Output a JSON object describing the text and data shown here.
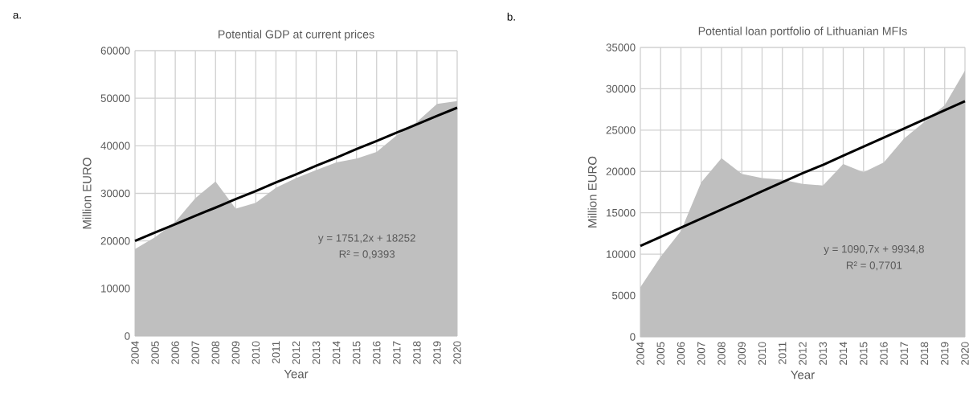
{
  "chart_data": [
    {
      "type": "area",
      "title": "Potential GDP at current prices",
      "xlabel": "Year",
      "ylabel": "Million EURO",
      "categories": [
        "2004",
        "2005",
        "2006",
        "2007",
        "2008",
        "2009",
        "2010",
        "2011",
        "2012",
        "2013",
        "2014",
        "2015",
        "2016",
        "2017",
        "2018",
        "2019",
        "2020"
      ],
      "series": [
        {
          "color": "#bfbfbf",
          "values": [
            18300,
            20800,
            24000,
            29000,
            32500,
            26800,
            28000,
            31200,
            33200,
            34900,
            36500,
            37300,
            38700,
            42200,
            45000,
            48800,
            49400
          ]
        },
        {
          "type": "line",
          "color": "#000000",
          "values": [
            20000,
            21800,
            23500,
            25300,
            27000,
            28800,
            30500,
            32300,
            34000,
            35800,
            37500,
            39300,
            41000,
            42800,
            44500,
            46300,
            48000
          ]
        }
      ],
      "ylim": [
        0,
        60000
      ],
      "yticks": [
        0,
        10000,
        20000,
        30000,
        40000,
        50000,
        60000
      ],
      "grid": true,
      "annotations": [
        "a.",
        "y = 1751,2x + 18252",
        "R² = 0,9393"
      ]
    },
    {
      "type": "area",
      "title": "Potential loan portfolio of Lithuanian MFIs",
      "xlabel": "Year",
      "ylabel": "Million EURO",
      "categories": [
        "2004",
        "2005",
        "2006",
        "2007",
        "2008",
        "2009",
        "2010",
        "2011",
        "2012",
        "2013",
        "2014",
        "2015",
        "2016",
        "2017",
        "2018",
        "2019",
        "2020"
      ],
      "series": [
        {
          "color": "#bfbfbf",
          "values": [
            6000,
            9700,
            12800,
            18700,
            21600,
            19700,
            19200,
            19000,
            18500,
            18300,
            20900,
            19900,
            21100,
            24000,
            26000,
            28000,
            32200
          ]
        },
        {
          "type": "line",
          "color": "#000000",
          "values": [
            11000,
            12100,
            13200,
            14300,
            15400,
            16500,
            17600,
            18700,
            19800,
            20800,
            21900,
            23000,
            24100,
            25200,
            26300,
            27400,
            28500
          ]
        }
      ],
      "ylim": [
        0,
        35000
      ],
      "yticks": [
        0,
        5000,
        10000,
        15000,
        20000,
        25000,
        30000,
        35000
      ],
      "grid": true,
      "annotations": [
        "b.",
        "y = 1090,7x + 9934,8",
        "R² = 0,7701"
      ]
    }
  ]
}
